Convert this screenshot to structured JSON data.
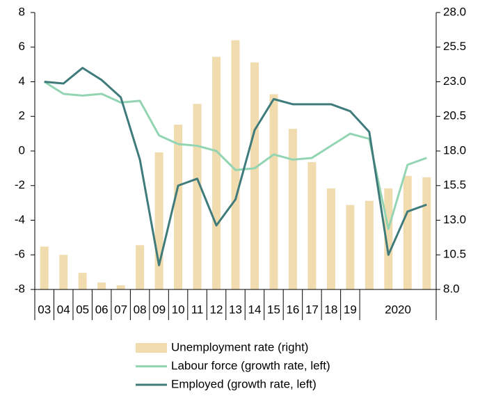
{
  "chart_data": {
    "type": "bar-line",
    "categories": [
      "03",
      "04",
      "05",
      "06",
      "07",
      "08",
      "09",
      "10",
      "11",
      "12",
      "13",
      "14",
      "15",
      "16",
      "17",
      "18",
      "19",
      null,
      "2020",
      null,
      null
    ],
    "series": [
      {
        "name": "Unemployment rate (right)",
        "type": "bar",
        "axis": "y2",
        "color": "#f1dcb0",
        "values": [
          11.1,
          10.5,
          9.2,
          8.5,
          8.3,
          11.2,
          17.9,
          19.9,
          21.4,
          24.8,
          26.0,
          24.4,
          22.1,
          19.6,
          17.2,
          15.3,
          14.1,
          14.4,
          15.3,
          16.2,
          16.1
        ]
      },
      {
        "name": "Labour force (growth rate, left)",
        "type": "line",
        "color": "#93d5b3",
        "values": [
          4.0,
          3.3,
          3.2,
          3.3,
          2.8,
          2.9,
          0.9,
          0.4,
          0.3,
          0.0,
          -1.1,
          -1.0,
          -0.2,
          -0.5,
          -0.4,
          0.3,
          1.0,
          0.7,
          -4.5,
          -0.8,
          -0.4
        ]
      },
      {
        "name": "Employed (growth rate, left)",
        "type": "line",
        "color": "#3f7b7b",
        "values": [
          4.0,
          3.9,
          4.8,
          4.1,
          3.1,
          -0.5,
          -6.6,
          -2.0,
          -1.6,
          -4.3,
          -2.8,
          1.2,
          3.0,
          2.7,
          2.7,
          2.7,
          2.3,
          1.1,
          -6.0,
          -3.5,
          -3.1
        ]
      }
    ],
    "ylim": [
      -8,
      8
    ],
    "yticks": [
      8,
      6,
      4,
      2,
      0,
      -2,
      -4,
      -6,
      -8
    ],
    "y2lim": [
      8,
      28
    ],
    "y2ticks": [
      {
        "value": 28,
        "label": "28.0"
      },
      {
        "value": 25.5,
        "label": "25.5"
      },
      {
        "value": 23,
        "label": "23.0"
      },
      {
        "value": 20.5,
        "label": "20.5"
      },
      {
        "value": 18,
        "label": "18.0"
      },
      {
        "value": 15.5,
        "label": "15.5"
      },
      {
        "value": 13,
        "label": "13.0"
      },
      {
        "value": 10.5,
        "label": "10.5"
      },
      {
        "value": 8,
        "label": "8.0"
      }
    ],
    "legend": "bottom"
  }
}
